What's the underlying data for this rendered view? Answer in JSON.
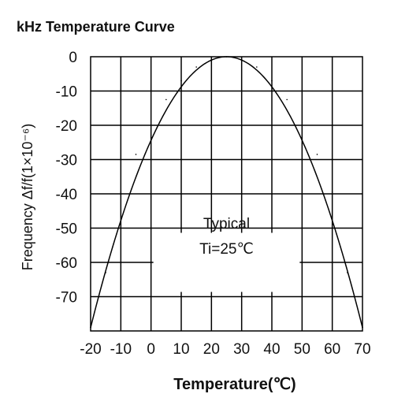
{
  "page": {
    "title": "kHz Temperature Curve"
  },
  "chart_data": {
    "type": "line",
    "title": "kHz Temperature Curve",
    "xlabel": "Temperature(℃)",
    "ylabel": "Frequency Δf/f(1×10⁻⁶)",
    "xlim": [
      -20,
      70
    ],
    "ylim": [
      -80,
      0
    ],
    "x_ticks": [
      -20,
      -10,
      0,
      10,
      20,
      30,
      40,
      50,
      60,
      70
    ],
    "x_tick_labels": [
      "-20",
      "-10",
      "0",
      "10",
      "20",
      "30",
      "40",
      "50",
      "60",
      "70"
    ],
    "y_ticks": [
      0,
      -10,
      -20,
      -30,
      -40,
      -50,
      -60,
      -70
    ],
    "y_tick_labels": [
      "0",
      "-10",
      "-20",
      "-30",
      "-40",
      "-50",
      "-60",
      "-70"
    ],
    "grid": true,
    "annotations": [
      "Typical",
      "Ti=25℃"
    ],
    "series": [
      {
        "x": [
          -20,
          -15,
          -10,
          -5,
          0,
          5,
          10,
          15,
          20,
          25,
          30,
          35,
          40,
          45,
          50,
          55,
          60,
          65,
          70
        ],
        "y": [
          -79,
          -63,
          -39.5,
          -28.5,
          -20,
          -12.5,
          -7,
          -3,
          -0.8,
          0,
          -0.8,
          -3,
          -7,
          -12.5,
          -20,
          -28.5,
          -39.5,
          -63,
          -79
        ]
      }
    ],
    "colors": {
      "line": "#000000",
      "grid": "#000000"
    }
  }
}
